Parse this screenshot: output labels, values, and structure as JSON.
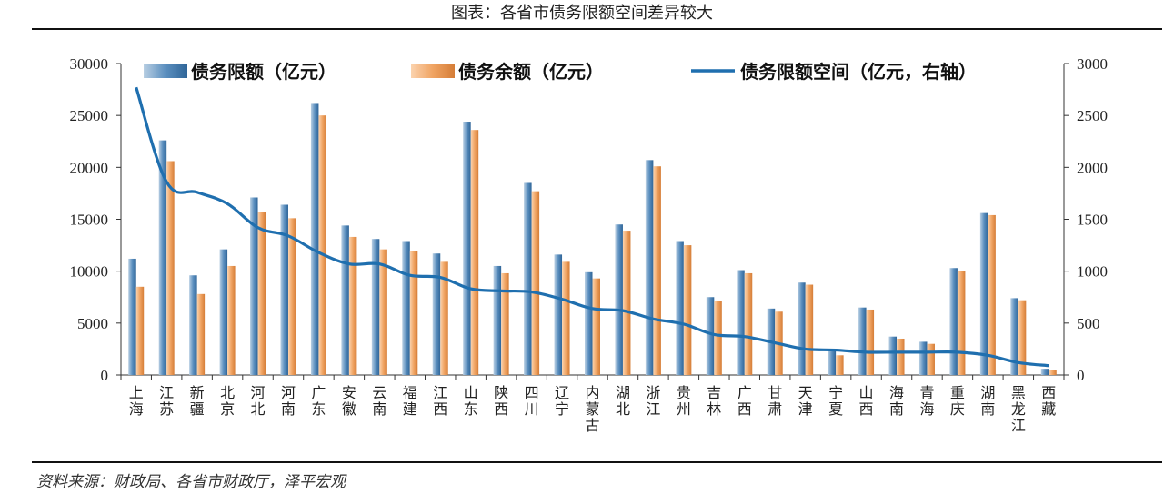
{
  "title": "图表：各省市债务限额空间差异较大",
  "source": "资料来源：财政局、各省市财政厅，泽平宏观",
  "chart_data": {
    "type": "bar",
    "categories": [
      "上海",
      "江苏",
      "新疆",
      "北京",
      "河北",
      "河南",
      "广东",
      "安徽",
      "云南",
      "福建",
      "江西",
      "山东",
      "陕西",
      "四川",
      "辽宁",
      "内蒙古",
      "湖北",
      "浙江",
      "贵州",
      "吉林",
      "广西",
      "甘肃",
      "天津",
      "宁夏",
      "山西",
      "海南",
      "青海",
      "重庆",
      "湖南",
      "黑龙江",
      "西藏"
    ],
    "series": [
      {
        "name": "债务限额（亿元）",
        "type": "bar",
        "axis": "left",
        "color": "#4f86b8",
        "values": [
          11200,
          22600,
          9600,
          12100,
          17100,
          16400,
          26200,
          14400,
          13100,
          12900,
          11700,
          24400,
          10500,
          18500,
          11600,
          9900,
          14500,
          20700,
          12900,
          7500,
          10100,
          6400,
          8900,
          2500,
          6500,
          3700,
          3200,
          10300,
          15600,
          7400,
          600
        ]
      },
      {
        "name": "债务余额（亿元）",
        "type": "bar",
        "axis": "left",
        "color": "#f0a060",
        "values": [
          8500,
          20600,
          7800,
          10500,
          15700,
          15100,
          25000,
          13300,
          12100,
          11900,
          10900,
          23600,
          9800,
          17700,
          10900,
          9300,
          13900,
          20100,
          12500,
          7100,
          9800,
          6100,
          8700,
          1900,
          6300,
          3500,
          3000,
          10000,
          15400,
          7200,
          500
        ]
      },
      {
        "name": "债务限额空间（亿元，右轴）",
        "type": "line",
        "axis": "right",
        "color": "#1f6faf",
        "values": [
          2770,
          1860,
          1760,
          1650,
          1420,
          1340,
          1180,
          1070,
          1070,
          960,
          940,
          830,
          810,
          800,
          730,
          640,
          620,
          540,
          490,
          390,
          370,
          310,
          250,
          240,
          220,
          220,
          220,
          220,
          190,
          120,
          90
        ]
      }
    ],
    "ylim": [
      0,
      30000
    ],
    "y_ticks": [
      "0",
      "5000",
      "10000",
      "15000",
      "20000",
      "25000",
      "30000"
    ],
    "y2lim": [
      0,
      3000
    ],
    "y2_ticks": [
      "0",
      "500",
      "1000",
      "1500",
      "2000",
      "2500",
      "3000"
    ],
    "grid": false,
    "legend_position": "top",
    "xlabel": "",
    "ylabel": ""
  }
}
